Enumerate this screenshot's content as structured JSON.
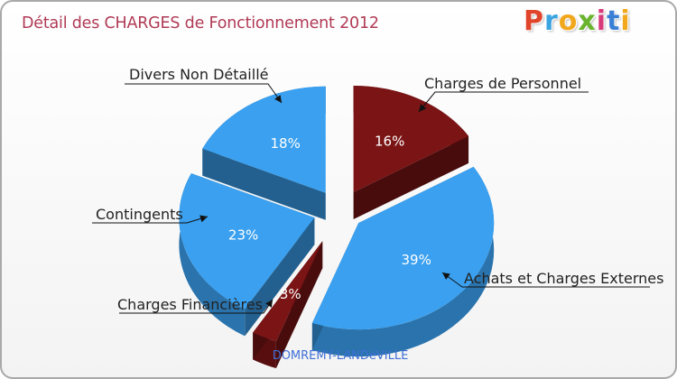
{
  "header": {
    "title": "Détail des CHARGES de Fonctionnement 2012",
    "logo": "Proxiti"
  },
  "commune": "DOMREMY-LANDéVILLE",
  "colors": {
    "blue": "#3aa0ef",
    "blue_side": "#2d7fc4",
    "red": "#7a1415",
    "red_side": "#4f0b0c",
    "title": "#b03a55"
  },
  "chart_data": {
    "type": "pie",
    "title": "Détail des CHARGES de Fonctionnement 2012",
    "slices": [
      {
        "label": "Charges de Personnel",
        "value": 16,
        "pct_label": "16%",
        "color": "#7a1415"
      },
      {
        "label": "Achats et Charges Externes",
        "value": 39,
        "pct_label": "39%",
        "color": "#3aa0ef"
      },
      {
        "label": "Charges Financières",
        "value": 3,
        "pct_label": "3%",
        "color": "#7a1415"
      },
      {
        "label": "Contingents",
        "value": 23,
        "pct_label": "23%",
        "color": "#3aa0ef"
      },
      {
        "label": "Divers Non Détaillé",
        "value": 18,
        "pct_label": "18%",
        "color": "#3aa0ef"
      }
    ]
  }
}
